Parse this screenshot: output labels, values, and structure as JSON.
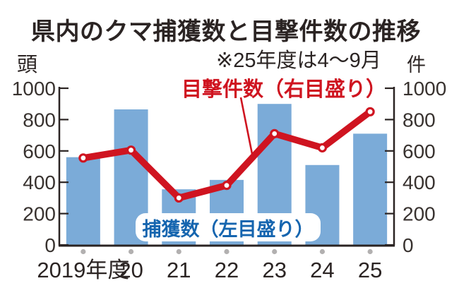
{
  "title": "県内のクマ捕獲数と目撃件数の推移",
  "note": "※25年度は4～9月",
  "left_axis_unit": "頭",
  "right_axis_unit": "件",
  "series_labels": {
    "line": "目撃件数（右目盛り）",
    "bar": "捕獲数（左目盛り）"
  },
  "chart_data": {
    "type": "bar",
    "subtype": "bar+line dual-axis",
    "title": "県内のクマ捕獲数と目撃件数の推移",
    "annotation": "※25年度は4～9月",
    "categories": [
      "2019年度",
      "20",
      "21",
      "22",
      "23",
      "24",
      "25"
    ],
    "series": [
      {
        "name": "捕獲数",
        "type": "bar",
        "axis": "left",
        "unit": "頭",
        "values": [
          560,
          865,
          355,
          415,
          900,
          510,
          710
        ]
      },
      {
        "name": "目撃件数",
        "type": "line",
        "axis": "right",
        "unit": "件",
        "values": [
          555,
          605,
          300,
          380,
          710,
          620,
          850
        ]
      }
    ],
    "left_axis": {
      "label": "頭",
      "ticks": [
        0,
        200,
        400,
        600,
        800,
        1000
      ],
      "range": [
        0,
        1000
      ]
    },
    "right_axis": {
      "label": "件",
      "ticks": [
        0,
        200,
        400,
        600,
        800,
        1000
      ],
      "range": [
        0,
        1000
      ]
    },
    "grid": false,
    "legend_position": "inline-labels",
    "colors": {
      "bar": "#7babd8",
      "line": "#cf1420",
      "bar_label_text": "#1565af",
      "line_label_text": "#cf1420",
      "axis": "#2b2423",
      "tick_text": "#38322f",
      "category_dot": "#b2b0b0"
    }
  }
}
